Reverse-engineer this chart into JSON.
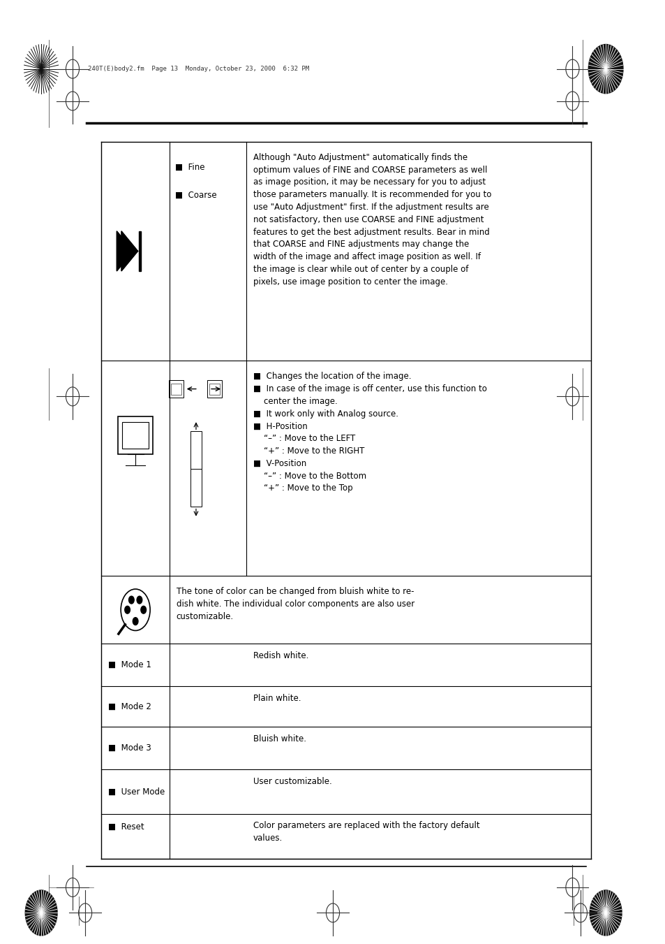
{
  "bg_color": "#ffffff",
  "text_color": "#000000",
  "page_width": 9.54,
  "page_height": 13.51,
  "header_text": "240T(E)body2.fm  Page 13  Monday, October 23, 2000  6:32 PM",
  "font_size_body": 8.5,
  "tl": 0.152,
  "tr": 0.888,
  "tt": 0.85,
  "tb": 0.09,
  "c1": 0.255,
  "c2": 0.37,
  "rows": [
    0.85,
    0.618,
    0.39,
    0.318,
    0.273,
    0.23,
    0.185,
    0.138,
    0.09
  ],
  "fine_text": "Although \"Auto Adjustment\" automatically finds the\noptimum values of FINE and COARSE parameters as well\nas image position, it may be necessary for you to adjust\nthose parameters manually. It is recommended for you to\nuse \"Auto Adjustment\" first. If the adjustment results are\nnot satisfactory, then use COARSE and FINE adjustment\nfeatures to get the best adjustment results. Bear in mind\nthat COARSE and FINE adjustments may change the\nwidth of the image and affect image position as well. If\nthe image is clear while out of center by a couple of\npixels, use image position to center the image.",
  "pos_text": "■  Changes the location of the image.\n■  In case of the image is off center, use this function to\n    center the image.\n■  It work only with Analog source.\n■  H-Position\n    “–” : Move to the LEFT\n    “+” : Move to the RIGHT\n■  V-Position\n    “–” : Move to the Bottom\n    “+” : Move to the Top",
  "color_text": "The tone of color can be changed from bluish white to re-\ndish white. The individual color components are also user\ncustomizable.",
  "mode_labels": [
    "■  Mode 1",
    "■  Mode 2",
    "■  Mode 3",
    "■  User Mode",
    "■  Reset"
  ],
  "mode_descs": [
    "Redish white.",
    "Plain white.",
    "Bluish white.",
    "User customizable.",
    "Color parameters are replaced with the factory default\nvalues."
  ]
}
